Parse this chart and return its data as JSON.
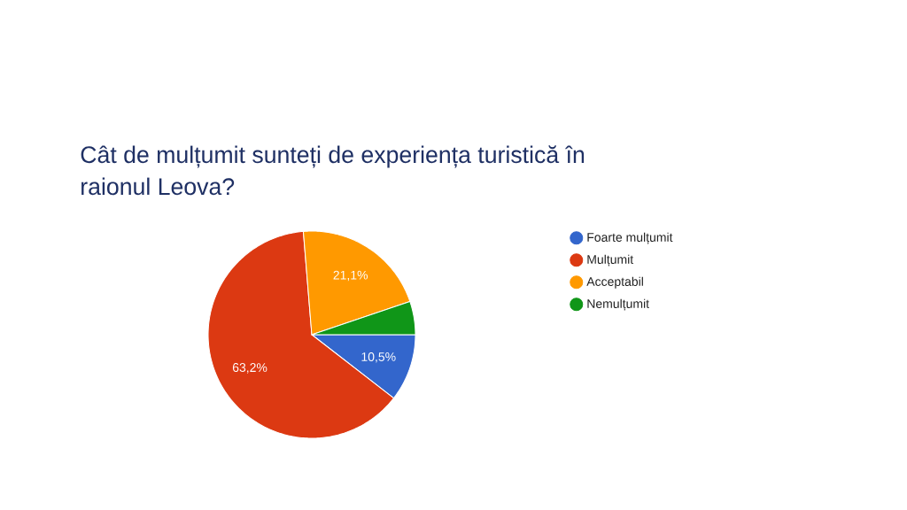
{
  "chart_data": {
    "type": "pie",
    "title": "Cât de mulțumit sunteți de experiența turistică în raionul Leova?",
    "categories": [
      "Foarte mulțumit",
      "Mulțumit",
      "Acceptabil",
      "Nemulțumit"
    ],
    "values": [
      10.5,
      63.2,
      21.1,
      5.2
    ],
    "colors": [
      "#3366cc",
      "#dc3912",
      "#ff9900",
      "#109618"
    ],
    "value_labels": [
      "10,5%",
      "63,2%",
      "21,1%",
      null
    ],
    "legend": "right"
  }
}
